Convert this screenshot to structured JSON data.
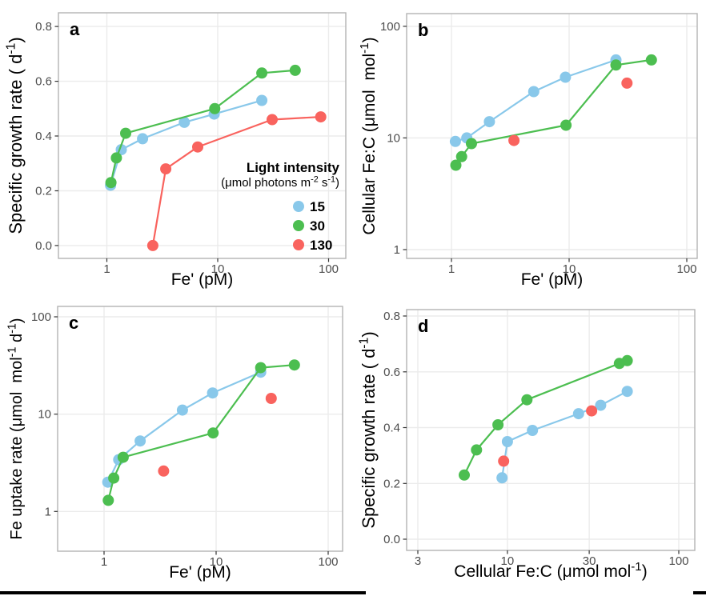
{
  "figure": {
    "background": "#ffffff",
    "panel_border_color": "#b3b3b3",
    "gridline_color": "#ebebeb",
    "tick_color": "#333333",
    "tick_label_color": "#4d4d4d",
    "axis_title_color": "#000000"
  },
  "legend": {
    "title": "Light intensity",
    "subtitle": "(μmol photons m^{-2} s^{-1})",
    "position": "inside panel a, lower right",
    "items": [
      {
        "label": "15",
        "color": "#89C8EA"
      },
      {
        "label": "30",
        "color": "#4CBE50"
      },
      {
        "label": "130",
        "color": "#F9635E"
      }
    ]
  },
  "chart_data": [
    {
      "id": "a",
      "letter": "a",
      "type": "scatter",
      "connected": true,
      "xlabel": "Fe' (pM)",
      "ylabel": "Specific growth rate ( d^{-1})",
      "x_scale": "log",
      "x_range": [
        0.366,
        143
      ],
      "x_ticks": [
        1,
        10,
        100
      ],
      "x_tick_labels": [
        "1",
        "10",
        "100"
      ],
      "y_scale": "linear",
      "y_range": [
        -0.047,
        0.85
      ],
      "y_ticks": [
        0.0,
        0.2,
        0.4,
        0.6,
        0.8
      ],
      "y_tick_labels": [
        "0.0",
        "0.2",
        "0.4",
        "0.6",
        "0.8"
      ],
      "grid": "major only",
      "show_legend": true,
      "series": [
        {
          "name": "15",
          "line": true,
          "points": [
            [
              1.08,
              0.22
            ],
            [
              1.35,
              0.35
            ],
            [
              2.1,
              0.39
            ],
            [
              5.0,
              0.45
            ],
            [
              9.3,
              0.48
            ],
            [
              25,
              0.53
            ]
          ]
        },
        {
          "name": "30",
          "line": true,
          "points": [
            [
              1.09,
              0.23
            ],
            [
              1.22,
              0.32
            ],
            [
              1.48,
              0.41
            ],
            [
              9.4,
              0.5
            ],
            [
              25,
              0.63
            ],
            [
              50,
              0.64
            ]
          ]
        },
        {
          "name": "130",
          "line": true,
          "points": [
            [
              2.6,
              0.0
            ],
            [
              3.4,
              0.28
            ],
            [
              6.6,
              0.36
            ],
            [
              31,
              0.46
            ],
            [
              85,
              0.47
            ]
          ]
        }
      ]
    },
    {
      "id": "b",
      "letter": "b",
      "type": "scatter",
      "connected": true,
      "xlabel": "Fe' (pM)",
      "ylabel": "Cellular Fe:C (μmol  mol^{-1})",
      "x_scale": "log",
      "x_range": [
        0.416,
        122.5
      ],
      "x_ticks": [
        1,
        10,
        100
      ],
      "x_tick_labels": [
        "1",
        "10",
        "100"
      ],
      "y_scale": "log",
      "y_range": [
        0.834,
        130
      ],
      "y_ticks": [
        1,
        10,
        100
      ],
      "y_tick_labels": [
        "1",
        "10",
        "100"
      ],
      "grid": "major only",
      "show_legend": false,
      "series": [
        {
          "name": "15",
          "line": true,
          "points": [
            [
              1.08,
              9.3
            ],
            [
              1.35,
              10
            ],
            [
              2.1,
              14
            ],
            [
              5.0,
              26
            ],
            [
              9.3,
              35
            ],
            [
              25,
              50
            ]
          ]
        },
        {
          "name": "30",
          "line": true,
          "points": [
            [
              1.09,
              5.7
            ],
            [
              1.22,
              6.8
            ],
            [
              1.48,
              8.9
            ],
            [
              9.4,
              13
            ],
            [
              25,
              45
            ],
            [
              50,
              50
            ]
          ]
        },
        {
          "name": "130",
          "line": false,
          "points": [
            [
              3.4,
              9.5
            ],
            [
              31,
              31
            ]
          ]
        }
      ]
    },
    {
      "id": "c",
      "letter": "c",
      "type": "scatter",
      "connected": true,
      "xlabel": "Fe' (pM)",
      "ylabel": "Fe uptake rate (μmol  mol^{-1} d^{-1})",
      "x_scale": "log",
      "x_range": [
        0.385,
        134.5
      ],
      "x_ticks": [
        1,
        10,
        100
      ],
      "x_tick_labels": [
        "1",
        "10",
        "100"
      ],
      "y_scale": "log",
      "y_range": [
        0.39,
        128
      ],
      "y_ticks": [
        1,
        10,
        100
      ],
      "y_tick_labels": [
        "1",
        "10",
        "100"
      ],
      "grid": "major only",
      "show_legend": false,
      "series": [
        {
          "name": "15",
          "line": true,
          "points": [
            [
              1.08,
              2.0
            ],
            [
              1.35,
              3.4
            ],
            [
              2.1,
              5.3
            ],
            [
              5.0,
              11
            ],
            [
              9.3,
              16.5
            ],
            [
              25,
              27
            ]
          ]
        },
        {
          "name": "30",
          "line": true,
          "points": [
            [
              1.09,
              1.3
            ],
            [
              1.22,
              2.2
            ],
            [
              1.48,
              3.6
            ],
            [
              9.4,
              6.4
            ],
            [
              25,
              30
            ],
            [
              50,
              32
            ]
          ]
        },
        {
          "name": "130",
          "line": false,
          "points": [
            [
              3.4,
              2.6
            ],
            [
              31,
              14.5
            ]
          ]
        }
      ]
    },
    {
      "id": "d",
      "letter": "d",
      "type": "scatter",
      "connected": true,
      "xlabel": "Cellular Fe:C (μmol mol^{-1})",
      "ylabel": "Specific growth rate ( d^{-1})",
      "x_scale": "log",
      "x_range": [
        2.58,
        124
      ],
      "x_ticks": [
        3,
        10,
        30,
        100
      ],
      "x_tick_labels": [
        "3",
        "10",
        "30",
        "100"
      ],
      "y_scale": "linear",
      "y_range": [
        -0.04,
        0.823
      ],
      "y_ticks": [
        0.0,
        0.2,
        0.4,
        0.6,
        0.8
      ],
      "y_tick_labels": [
        "0.0",
        "0.2",
        "0.4",
        "0.6",
        "0.8"
      ],
      "grid": "major only",
      "show_legend": false,
      "series": [
        {
          "name": "15",
          "line": true,
          "points": [
            [
              9.3,
              0.22
            ],
            [
              10,
              0.35
            ],
            [
              14,
              0.39
            ],
            [
              26,
              0.45
            ],
            [
              35,
              0.48
            ],
            [
              50,
              0.53
            ]
          ]
        },
        {
          "name": "30",
          "line": true,
          "points": [
            [
              5.6,
              0.23
            ],
            [
              6.6,
              0.32
            ],
            [
              8.8,
              0.41
            ],
            [
              13,
              0.5
            ],
            [
              45,
              0.63
            ],
            [
              50,
              0.64
            ]
          ]
        },
        {
          "name": "130",
          "line": false,
          "points": [
            [
              9.5,
              0.28
            ],
            [
              31,
              0.46
            ]
          ]
        }
      ]
    }
  ]
}
